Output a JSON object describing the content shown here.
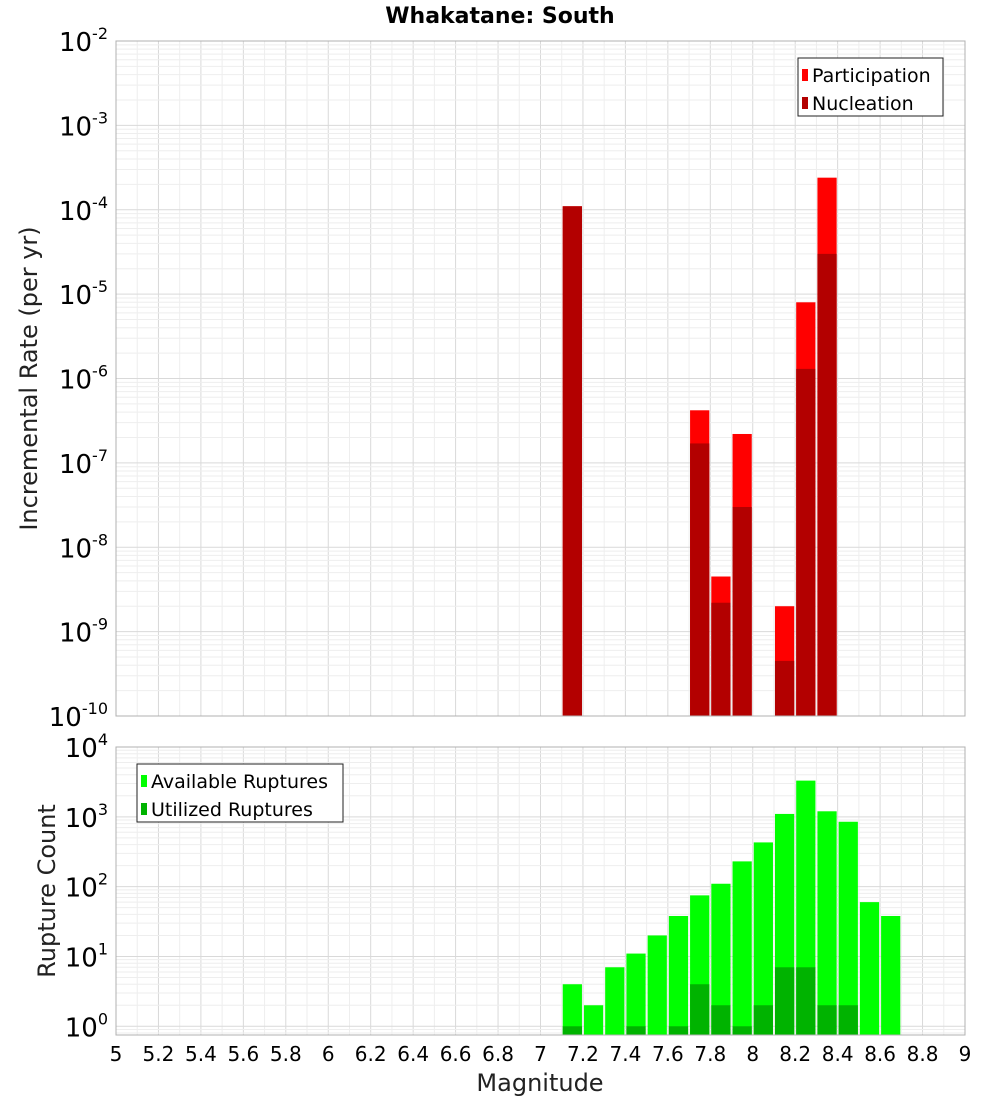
{
  "chart_data": {
    "title": "Whakatane: South",
    "xlabel": "Magnitude",
    "xlim": [
      5,
      9
    ],
    "x_ticks": [
      "5",
      "5.2",
      "5.4",
      "5.6",
      "5.8",
      "6",
      "6.2",
      "6.4",
      "6.6",
      "6.8",
      "7",
      "7.2",
      "7.4",
      "7.6",
      "7.8",
      "8",
      "8.2",
      "8.4",
      "8.6",
      "8.8",
      "9"
    ],
    "bin_width": 0.1,
    "grid": true,
    "panels": [
      {
        "type": "bar",
        "ylabel": "Incremental Rate (per yr)",
        "yscale": "log",
        "ylim": [
          1e-10,
          0.01
        ],
        "y_tick_exponents": [
          -10,
          -9,
          -8,
          -7,
          -6,
          -5,
          -4,
          -3,
          -2
        ],
        "legend_position": "top-right",
        "series": [
          {
            "name": "Participation",
            "color": "#ff0000",
            "x": [
              7.15,
              7.75,
              7.85,
              7.95,
              8.15,
              8.25,
              8.35
            ],
            "values": [
              0.00011,
              4.2e-07,
              4.5e-09,
              2.2e-07,
              2e-09,
              8e-06,
              0.00024
            ]
          },
          {
            "name": "Nucleation",
            "color": "#b30000",
            "x": [
              7.15,
              7.75,
              7.85,
              7.95,
              8.15,
              8.25,
              8.35
            ],
            "values": [
              0.00011,
              1.7e-07,
              2.2e-09,
              3e-08,
              4.5e-10,
              1.3e-06,
              3e-05
            ]
          }
        ]
      },
      {
        "type": "bar",
        "ylabel": "Rupture Count",
        "yscale": "log",
        "ylim": [
          0.75,
          10000.0
        ],
        "y_tick_exponents": [
          0,
          1,
          2,
          3,
          4
        ],
        "legend_position": "top-left",
        "series": [
          {
            "name": "Available Ruptures",
            "color": "#00ff00",
            "x": [
              7.15,
              7.25,
              7.35,
              7.45,
              7.55,
              7.65,
              7.75,
              7.85,
              7.95,
              8.05,
              8.15,
              8.25,
              8.35,
              8.45,
              8.55,
              8.65
            ],
            "values": [
              4,
              2,
              7,
              11,
              20,
              38,
              75,
              110,
              230,
              430,
              1100,
              3300,
              1200,
              850,
              60,
              38
            ]
          },
          {
            "name": "Utilized Ruptures",
            "color": "#00b300",
            "x": [
              7.15,
              7.45,
              7.65,
              7.75,
              7.85,
              7.95,
              8.05,
              8.15,
              8.25,
              8.35,
              8.45
            ],
            "values": [
              1,
              1,
              1,
              4,
              2,
              1,
              2,
              7,
              7,
              2,
              2
            ]
          }
        ]
      }
    ]
  }
}
